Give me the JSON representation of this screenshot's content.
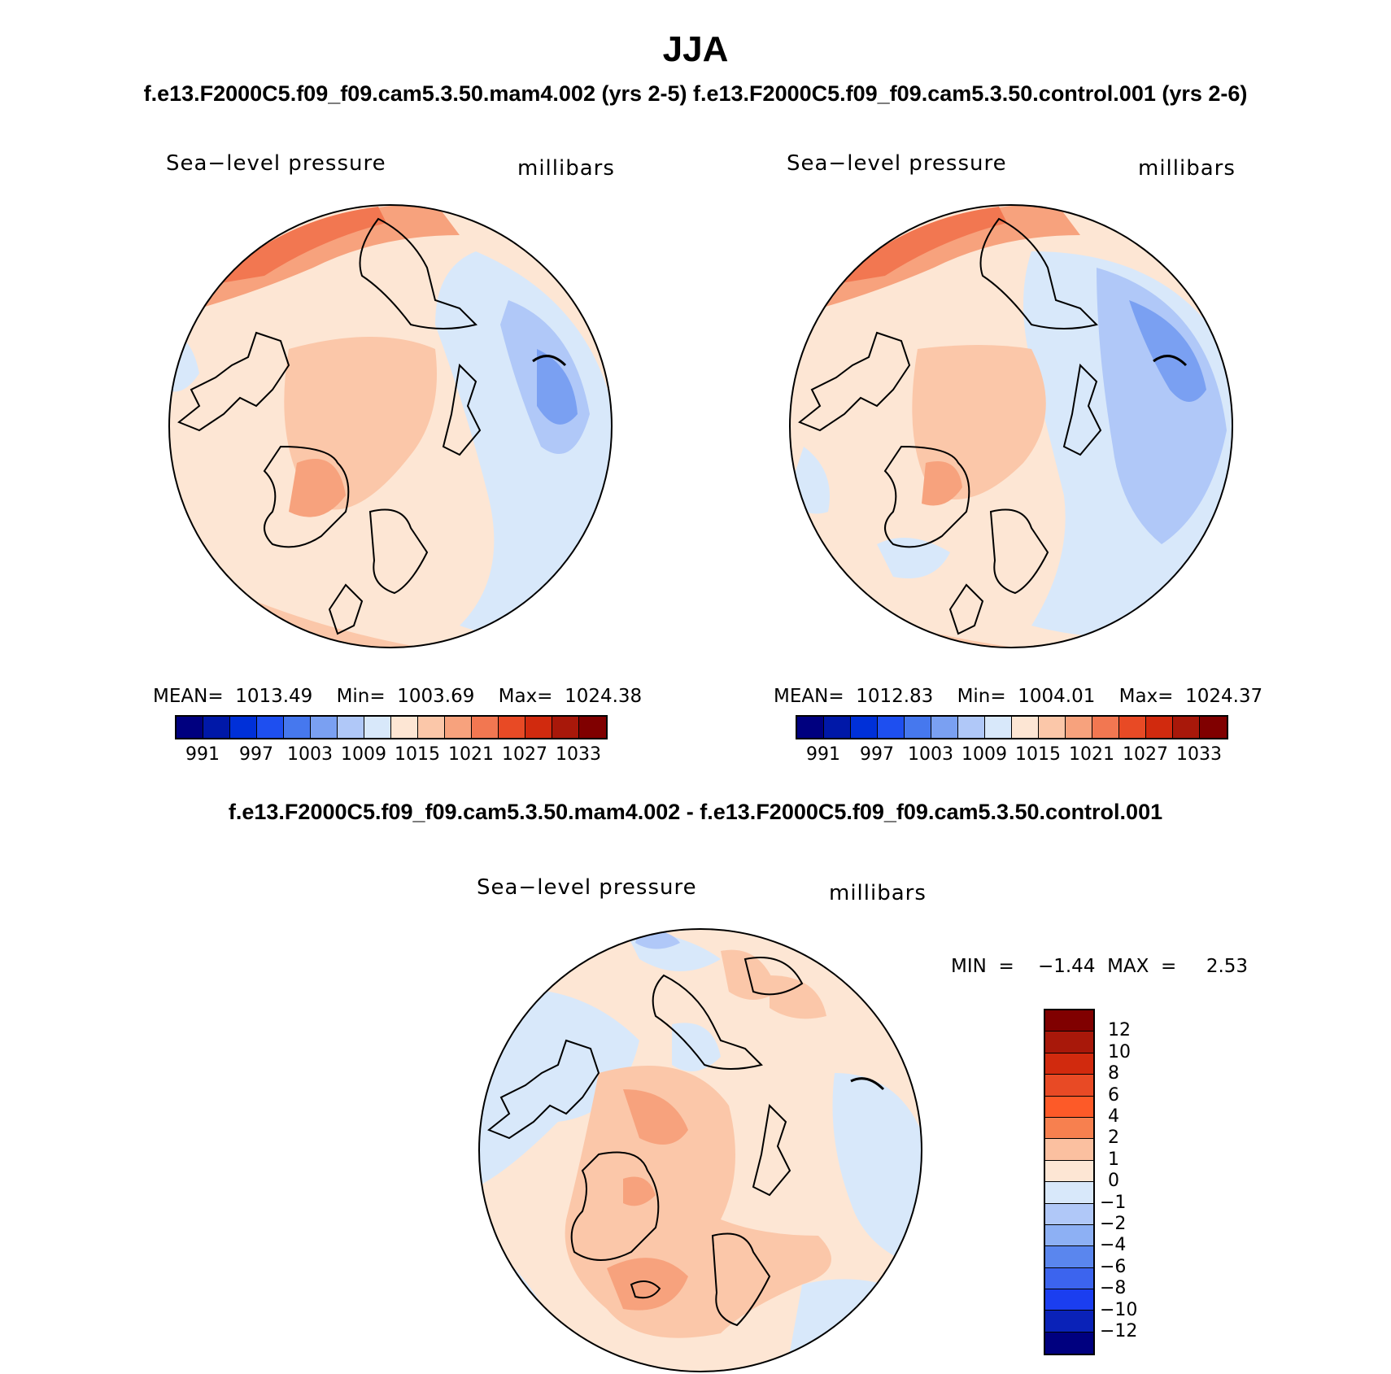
{
  "title": "JJA",
  "top_subtitle": "f.e13.F2000C5.f09_f09.cam5.3.50.mam4.002 (yrs 2-5) f.e13.F2000C5.f09_f09.cam5.3.50.control.001 (yrs 2-6)",
  "bottom_title": "f.e13.F2000C5.f09_f09.cam5.3.50.mam4.002 - f.e13.F2000C5.f09_f09.cam5.3.50.control.001",
  "panels": [
    {
      "variable": "Sea−level pressure",
      "units": "millibars",
      "stats": "MEAN=  1013.49    Min=  1003.69    Max=  1024.38"
    },
    {
      "variable": "Sea−level pressure",
      "units": "millibars",
      "stats": "MEAN=  1012.83    Min=  1004.01    Max=  1024.37"
    },
    {
      "variable": "Sea−level pressure",
      "units": "millibars",
      "stats": "MIN  =    −1.44  MAX  =     2.53"
    }
  ],
  "colorbar_abs": {
    "colors": [
      "#00007f",
      "#0018a8",
      "#0030d8",
      "#1e4ff0",
      "#4678ee",
      "#7aa0f2",
      "#b0c8f8",
      "#d8e8fa",
      "#fde6d4",
      "#fbc7a9",
      "#f7a27d",
      "#f27751",
      "#e84a25",
      "#d12a0e",
      "#a8180a",
      "#800000"
    ],
    "ticks": [
      "991",
      "997",
      "1003",
      "1009",
      "1015",
      "1021",
      "1027",
      "1033"
    ]
  },
  "colorbar_diff": {
    "colors": [
      "#800000",
      "#a8180a",
      "#d12a0e",
      "#e84a25",
      "#fd5a28",
      "#f7804f",
      "#fbc0a0",
      "#fde6d4",
      "#d8e8fa",
      "#b0c8f8",
      "#8db0f4",
      "#5a86ee",
      "#3c64ee",
      "#1b3ef0",
      "#0a22b8",
      "#00007f"
    ],
    "ticks": [
      "12",
      "10",
      "8",
      "6",
      "4",
      "2",
      "1",
      "0",
      "−1",
      "−2",
      "−4",
      "−6",
      "−8",
      "−10",
      "−12"
    ]
  }
}
